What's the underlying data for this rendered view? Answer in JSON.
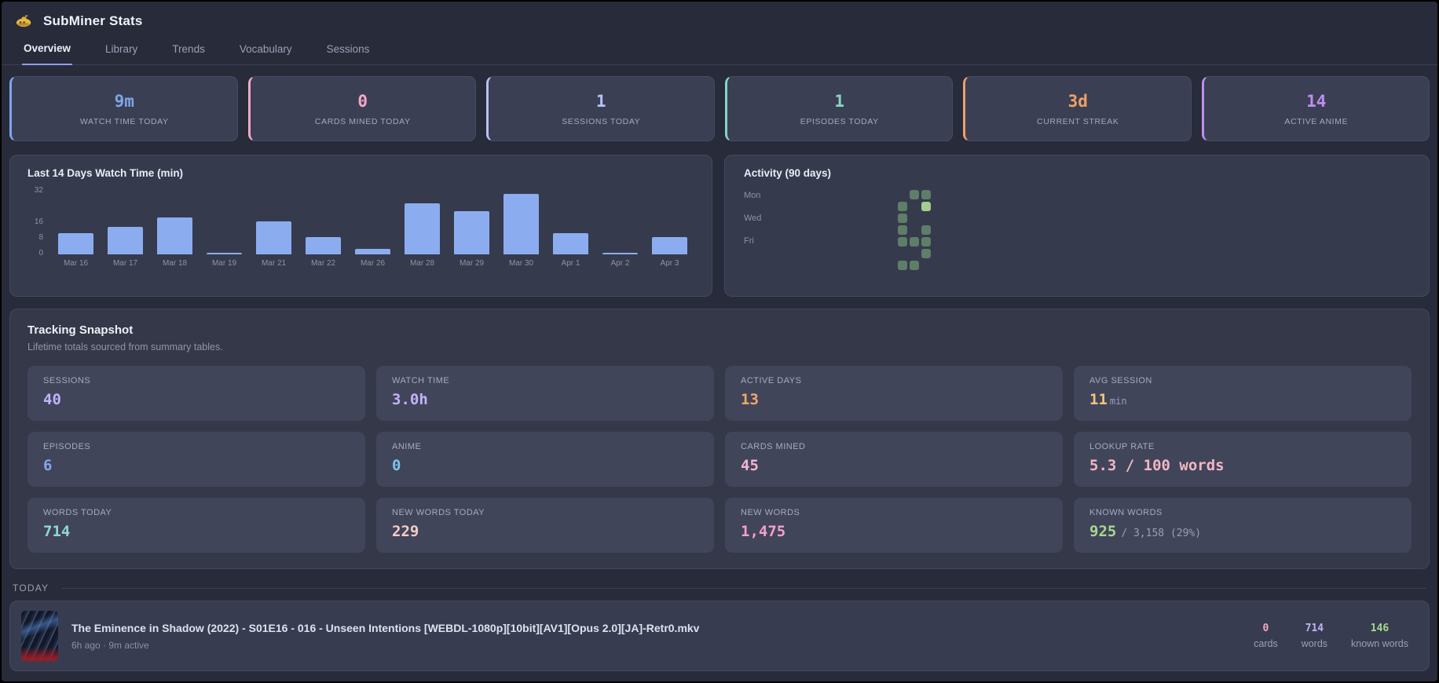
{
  "header": {
    "title": "SubMiner Stats",
    "icon": "yellow-submarine"
  },
  "tabs": [
    {
      "label": "Overview",
      "active": true
    },
    {
      "label": "Library",
      "active": false
    },
    {
      "label": "Trends",
      "active": false
    },
    {
      "label": "Vocabulary",
      "active": false
    },
    {
      "label": "Sessions",
      "active": false
    }
  ],
  "stat_cards": [
    {
      "value": "9m",
      "label": "WATCH TIME TODAY",
      "color": "#7ea6ea"
    },
    {
      "value": "0",
      "label": "CARDS MINED TODAY",
      "color": "#f4a8c8"
    },
    {
      "value": "1",
      "label": "SESSIONS TODAY",
      "color": "#b8c2f5"
    },
    {
      "value": "1",
      "label": "EPISODES TODAY",
      "color": "#85d6c3"
    },
    {
      "value": "3d",
      "label": "CURRENT STREAK",
      "color": "#f0a068"
    },
    {
      "value": "14",
      "label": "ACTIVE ANIME",
      "color": "#bf8df0"
    }
  ],
  "chart_data": {
    "type": "bar",
    "title": "Last 14 Days Watch Time (min)",
    "categories": [
      "Mar 16",
      "Mar 17",
      "Mar 18",
      "Mar 19",
      "Mar 21",
      "Mar 22",
      "Mar 26",
      "Mar 28",
      "Mar 29",
      "Mar 30",
      "Apr 1",
      "Apr 2",
      "Apr 3"
    ],
    "values": [
      11,
      14,
      19,
      1,
      17,
      9,
      3,
      26,
      22,
      31,
      11,
      1,
      9
    ],
    "yticks": [
      0,
      8,
      16,
      32
    ],
    "ylim": [
      0,
      32
    ],
    "xlabel": "",
    "ylabel": "",
    "grid": false,
    "bar_color": "#8badf0"
  },
  "activity": {
    "title": "Activity (90 days)",
    "day_labels": [
      "Mon",
      "Wed",
      "Fri"
    ],
    "grid": {
      "cols": 13,
      "rows": 7
    },
    "cell_color": "#5e7e67",
    "cell_color_bright": "#a3cc8e",
    "cells": [
      {
        "col": 11,
        "row": 0,
        "level": 1
      },
      {
        "col": 12,
        "row": 0,
        "level": 1
      },
      {
        "col": 10,
        "row": 1,
        "level": 1
      },
      {
        "col": 12,
        "row": 1,
        "level": 2
      },
      {
        "col": 10,
        "row": 2,
        "level": 1
      },
      {
        "col": 10,
        "row": 3,
        "level": 1
      },
      {
        "col": 12,
        "row": 3,
        "level": 1
      },
      {
        "col": 10,
        "row": 4,
        "level": 1
      },
      {
        "col": 11,
        "row": 4,
        "level": 1
      },
      {
        "col": 12,
        "row": 4,
        "level": 1
      },
      {
        "col": 12,
        "row": 5,
        "level": 1
      },
      {
        "col": 10,
        "row": 6,
        "level": 1
      },
      {
        "col": 11,
        "row": 6,
        "level": 1
      }
    ]
  },
  "snapshot": {
    "title": "Tracking Snapshot",
    "subtitle": "Lifetime totals sourced from summary tables.",
    "cells": [
      {
        "label": "SESSIONS",
        "value": "40",
        "suffix": "",
        "color": "#c3b2f7"
      },
      {
        "label": "WATCH TIME",
        "value": "3.0h",
        "suffix": "",
        "color": "#c3b2f7"
      },
      {
        "label": "ACTIVE DAYS",
        "value": "13",
        "suffix": "",
        "color": "#f0a868"
      },
      {
        "label": "AVG SESSION",
        "value": "11",
        "suffix": "min",
        "color": "#f3c57c"
      },
      {
        "label": "EPISODES",
        "value": "6",
        "suffix": "",
        "color": "#82a7ea"
      },
      {
        "label": "ANIME",
        "value": "0",
        "suffix": "",
        "color": "#7fc4ea"
      },
      {
        "label": "CARDS MINED",
        "value": "45",
        "suffix": "",
        "color": "#f4b6d0"
      },
      {
        "label": "LOOKUP RATE",
        "value": "5.3 / 100 words",
        "suffix": "",
        "color": "#f4b6c2"
      },
      {
        "label": "WORDS TODAY",
        "value": "714",
        "suffix": "",
        "color": "#8fd8d2"
      },
      {
        "label": "NEW WORDS TODAY",
        "value": "229",
        "suffix": "",
        "color": "#f5cbc4"
      },
      {
        "label": "NEW WORDS",
        "value": "1,475",
        "suffix": "",
        "color": "#f59fcb"
      },
      {
        "label": "KNOWN WORDS",
        "value": "925",
        "suffix": "/ 3,158 (29%)",
        "color": "#a5d98e"
      }
    ]
  },
  "today": {
    "heading": "TODAY",
    "item": {
      "title": "The Eminence in Shadow (2022) - S01E16 - 016 - Unseen Intentions [WEBDL-1080p][10bit][AV1][Opus 2.0][JA]-Retr0.mkv",
      "meta": "6h ago · 9m active",
      "stats": [
        {
          "value": "0",
          "label": "cards",
          "color": "#f4a8c8"
        },
        {
          "value": "714",
          "label": "words",
          "color": "#c3b2f7"
        },
        {
          "value": "146",
          "label": "known words",
          "color": "#a5d98e"
        }
      ]
    }
  }
}
